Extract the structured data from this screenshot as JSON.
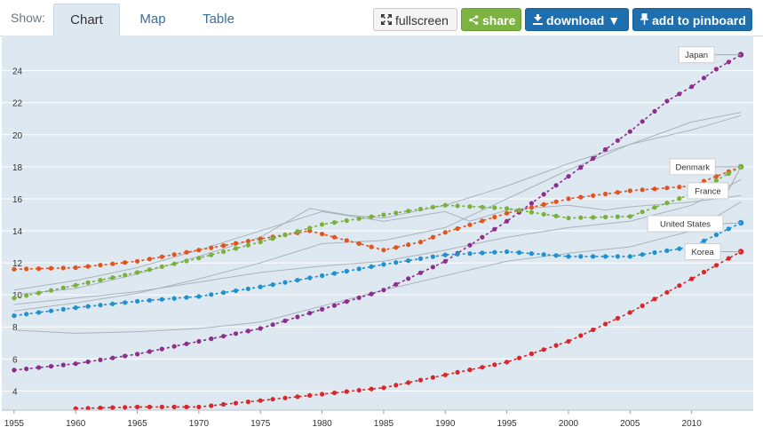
{
  "toolbar": {
    "show_label": "Show:",
    "tabs": [
      {
        "label": "Chart",
        "active": true
      },
      {
        "label": "Map",
        "active": false
      },
      {
        "label": "Table",
        "active": false
      }
    ],
    "buttons": {
      "fullscreen": "fullscreen",
      "share": "share",
      "download": "download ▼",
      "pinboard": "add to pinboard"
    }
  },
  "colors": {
    "plot_bg": "#dde8f0",
    "gridline": "#ffffff",
    "japan": "#8e2e8c",
    "denmark": "#e2541f",
    "france": "#7ab03c",
    "united_states": "#1f91cf",
    "korea": "#d8272b",
    "context": "#a9b4bd"
  },
  "chart_data": {
    "type": "line",
    "title": "",
    "xlabel": "",
    "ylabel": "",
    "xlim": [
      1954,
      2015
    ],
    "ylim": [
      2.8,
      26.2
    ],
    "x_ticks": [
      1955,
      1960,
      1965,
      1970,
      1975,
      1980,
      1985,
      1990,
      1995,
      2000,
      2005,
      2010
    ],
    "y_ticks": [
      4,
      6,
      8,
      10,
      12,
      14,
      16,
      18,
      20,
      22,
      24
    ],
    "grid": true,
    "series": [
      {
        "name": "Japan",
        "color_key": "japan",
        "points": [
          [
            1955,
            5.3
          ],
          [
            1960,
            5.7
          ],
          [
            1965,
            6.3
          ],
          [
            1970,
            7.1
          ],
          [
            1975,
            7.9
          ],
          [
            1980,
            9.1
          ],
          [
            1985,
            10.3
          ],
          [
            1990,
            12.1
          ],
          [
            1995,
            14.6
          ],
          [
            2000,
            17.4
          ],
          [
            2005,
            20.2
          ],
          [
            2008,
            22.1
          ],
          [
            2010,
            23.0
          ],
          [
            2012,
            24.1
          ],
          [
            2014,
            25.0
          ]
        ]
      },
      {
        "name": "Denmark",
        "color_key": "denmark",
        "points": [
          [
            1955,
            11.6
          ],
          [
            1960,
            11.7
          ],
          [
            1965,
            12.1
          ],
          [
            1970,
            12.8
          ],
          [
            1975,
            13.5
          ],
          [
            1979,
            14.0
          ],
          [
            1982,
            13.4
          ],
          [
            1985,
            12.8
          ],
          [
            1988,
            13.3
          ],
          [
            1990,
            13.9
          ],
          [
            1995,
            15.1
          ],
          [
            2000,
            16.0
          ],
          [
            2005,
            16.5
          ],
          [
            2010,
            16.8
          ],
          [
            2014,
            18.0
          ]
        ]
      },
      {
        "name": "France",
        "color_key": "france",
        "points": [
          [
            1955,
            9.8
          ],
          [
            1960,
            10.6
          ],
          [
            1965,
            11.4
          ],
          [
            1970,
            12.3
          ],
          [
            1975,
            13.3
          ],
          [
            1980,
            14.4
          ],
          [
            1985,
            15.0
          ],
          [
            1990,
            15.6
          ],
          [
            1995,
            15.4
          ],
          [
            2000,
            14.8
          ],
          [
            2005,
            14.9
          ],
          [
            2010,
            16.3
          ],
          [
            2014,
            18.0
          ]
        ]
      },
      {
        "name": "United States",
        "color_key": "united_states",
        "points": [
          [
            1955,
            8.7
          ],
          [
            1960,
            9.2
          ],
          [
            1965,
            9.6
          ],
          [
            1970,
            9.9
          ],
          [
            1975,
            10.5
          ],
          [
            1980,
            11.2
          ],
          [
            1985,
            11.9
          ],
          [
            1990,
            12.5
          ],
          [
            1995,
            12.7
          ],
          [
            2000,
            12.4
          ],
          [
            2005,
            12.4
          ],
          [
            2010,
            13.0
          ],
          [
            2014,
            14.5
          ]
        ]
      },
      {
        "name": "Korea",
        "color_key": "korea",
        "points": [
          [
            1960,
            2.9
          ],
          [
            1965,
            3.0
          ],
          [
            1970,
            3.0
          ],
          [
            1975,
            3.4
          ],
          [
            1980,
            3.8
          ],
          [
            1985,
            4.2
          ],
          [
            1990,
            5.0
          ],
          [
            1995,
            5.8
          ],
          [
            2000,
            7.1
          ],
          [
            2005,
            8.9
          ],
          [
            2010,
            11.0
          ],
          [
            2014,
            12.7
          ]
        ]
      }
    ],
    "context_lines": [
      [
        [
          1955,
          10.0
        ],
        [
          1960,
          10.4
        ],
        [
          1965,
          11.3
        ],
        [
          1970,
          12.4
        ],
        [
          1975,
          13.6
        ],
        [
          1979,
          15.4
        ],
        [
          1982,
          15.0
        ],
        [
          1985,
          14.8
        ],
        [
          1990,
          15.6
        ],
        [
          1995,
          16.8
        ],
        [
          2000,
          18.2
        ],
        [
          2005,
          19.4
        ],
        [
          2010,
          20.8
        ],
        [
          2014,
          21.4
        ]
      ],
      [
        [
          1955,
          10.3
        ],
        [
          1960,
          10.9
        ],
        [
          1965,
          11.7
        ],
        [
          1970,
          12.8
        ],
        [
          1975,
          14.0
        ],
        [
          1980,
          15.2
        ],
        [
          1985,
          14.6
        ],
        [
          1990,
          15.2
        ],
        [
          1992,
          14.6
        ],
        [
          1995,
          15.3
        ],
        [
          2000,
          15.6
        ],
        [
          2003,
          15.3
        ],
        [
          2005,
          15.5
        ],
        [
          2010,
          15.8
        ],
        [
          2014,
          16.2
        ]
      ],
      [
        [
          1955,
          9.0
        ],
        [
          1960,
          9.5
        ],
        [
          1965,
          10.1
        ],
        [
          1970,
          11.0
        ],
        [
          1975,
          12.0
        ],
        [
          1980,
          13.2
        ],
        [
          1985,
          13.4
        ],
        [
          1990,
          14.2
        ],
        [
          1995,
          16.0
        ],
        [
          2000,
          17.8
        ],
        [
          2005,
          19.4
        ],
        [
          2010,
          20.3
        ],
        [
          2014,
          21.2
        ]
      ],
      [
        [
          1955,
          7.8
        ],
        [
          1960,
          7.6
        ],
        [
          1965,
          7.7
        ],
        [
          1970,
          7.9
        ],
        [
          1975,
          8.3
        ],
        [
          1980,
          9.3
        ],
        [
          1985,
          10.3
        ],
        [
          1990,
          11.2
        ],
        [
          1995,
          12.1
        ],
        [
          2000,
          12.6
        ],
        [
          2005,
          13.0
        ],
        [
          2010,
          14.0
        ],
        [
          2014,
          15.8
        ]
      ],
      [
        [
          1955,
          9.4
        ],
        [
          1960,
          9.8
        ],
        [
          1965,
          10.2
        ],
        [
          1970,
          10.8
        ],
        [
          1975,
          11.4
        ],
        [
          1980,
          11.8
        ],
        [
          1985,
          12.1
        ],
        [
          1990,
          12.8
        ],
        [
          1995,
          13.6
        ],
        [
          2000,
          14.2
        ],
        [
          2005,
          14.6
        ],
        [
          2010,
          15.6
        ],
        [
          2014,
          17.2
        ]
      ]
    ]
  }
}
